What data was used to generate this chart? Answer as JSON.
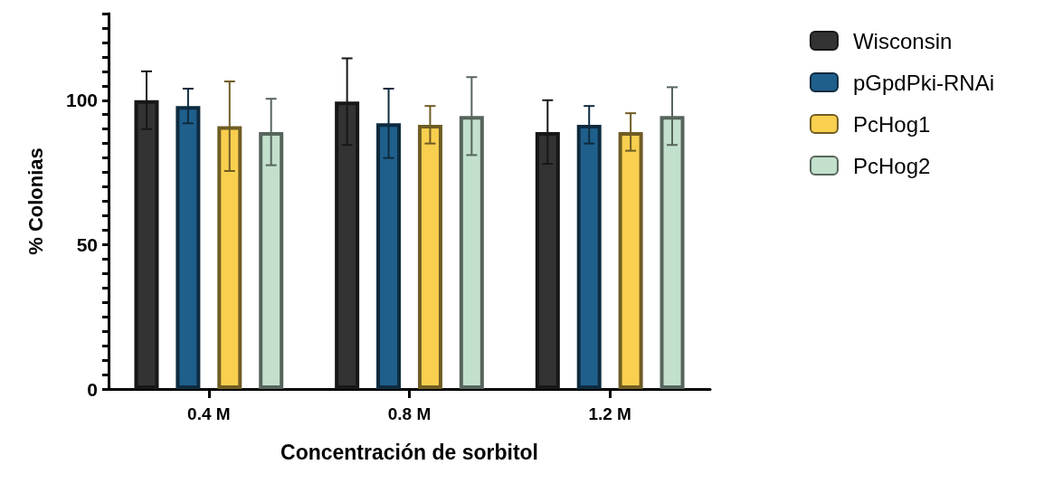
{
  "chart_data": {
    "type": "bar",
    "xlabel": "Concentración de sorbitol",
    "ylabel": "% Colonias",
    "categories": [
      "0.4 M",
      "0.8 M",
      "1.2 M"
    ],
    "series": [
      {
        "name": "Wisconsin",
        "color": "#333333",
        "values": [
          100,
          99.5,
          89
        ],
        "errors": [
          10,
          15,
          11
        ]
      },
      {
        "name": "pGpdPki-RNAi",
        "color": "#1f5f8b",
        "values": [
          98,
          92,
          91.5
        ],
        "errors": [
          6,
          12,
          6.5
        ]
      },
      {
        "name": "PcHog1",
        "color": "#f9cf4f",
        "values": [
          91,
          91.5,
          89
        ],
        "errors": [
          15.5,
          6.5,
          6.5
        ]
      },
      {
        "name": "PcHog2",
        "color": "#c2e0cc",
        "values": [
          89,
          94.5,
          94.5
        ],
        "errors": [
          11.5,
          13.5,
          10
        ]
      }
    ],
    "ylim": [
      0,
      130
    ],
    "yticks": [
      0,
      {
        "value": 5,
        "label": null
      },
      {
        "value": 10,
        "label": null
      },
      {
        "value": 15,
        "label": null
      },
      {
        "value": 20,
        "label": null
      },
      {
        "value": 25,
        "label": null
      },
      {
        "value": 30,
        "label": null
      },
      {
        "value": 35,
        "label": null
      },
      {
        "value": 40,
        "label": null
      },
      {
        "value": 45,
        "label": null
      },
      50,
      {
        "value": 55,
        "label": null
      },
      {
        "value": 60,
        "label": null
      },
      {
        "value": 65,
        "label": null
      },
      {
        "value": 70,
        "label": null
      },
      {
        "value": 75,
        "label": null
      },
      {
        "value": 80,
        "label": null
      },
      {
        "value": 85,
        "label": null
      },
      {
        "value": 90,
        "label": null
      },
      {
        "value": 95,
        "label": null
      },
      100,
      {
        "value": 105,
        "label": null
      },
      {
        "value": 110,
        "label": null
      },
      {
        "value": 115,
        "label": null
      },
      {
        "value": 120,
        "label": null
      },
      {
        "value": 125,
        "label": null
      },
      {
        "value": 130,
        "label": null
      }
    ],
    "grid": false,
    "legend": "top right"
  }
}
